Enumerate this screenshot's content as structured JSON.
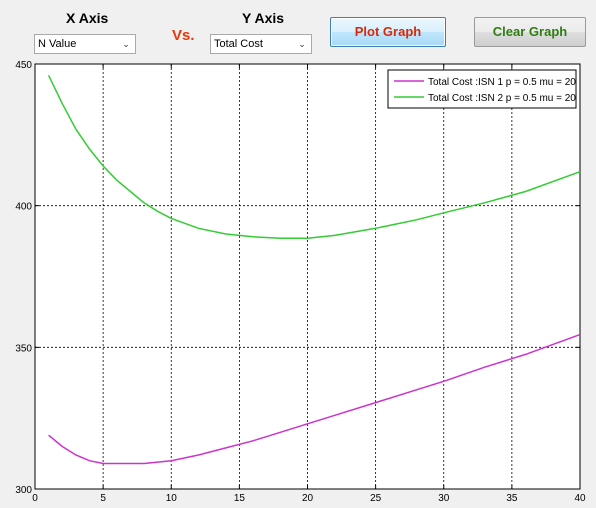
{
  "controls": {
    "x_axis_label": "X Axis",
    "y_axis_label": "Y Axis",
    "vs_label": "Vs.",
    "x_select_value": "N Value",
    "y_select_value": "Total Cost",
    "plot_button": "Plot Graph",
    "clear_button": "Clear Graph"
  },
  "chart_data": {
    "type": "line",
    "title": "",
    "xlabel": "",
    "ylabel": "",
    "xlim": [
      0,
      40
    ],
    "ylim": [
      300,
      450
    ],
    "xticks": [
      "0",
      "5",
      "10",
      "15",
      "20",
      "25",
      "30",
      "35",
      "40"
    ],
    "yticks": [
      "300",
      "350",
      "400",
      "450"
    ],
    "grid": true,
    "legend_position": "top-right",
    "series": [
      {
        "name": "Total Cost :ISN 1 p = 0.5 mu = 20",
        "color": "#cc33cc",
        "x": [
          1,
          2,
          3,
          4,
          5,
          6,
          7,
          8,
          9,
          10,
          12,
          14,
          16,
          18,
          20,
          22,
          25,
          28,
          30,
          33,
          36,
          40
        ],
        "y": [
          319,
          315,
          312,
          310,
          309,
          309,
          309,
          309,
          309.5,
          310,
          312,
          314.5,
          317,
          320,
          323,
          326,
          330.5,
          335,
          338,
          343,
          347.5,
          354.5
        ]
      },
      {
        "name": "Total Cost :ISN 2 p = 0.5 mu = 20",
        "color": "#33cc33",
        "x": [
          1,
          2,
          3,
          4,
          5,
          6,
          7,
          8,
          9,
          10,
          12,
          14,
          16,
          18,
          20,
          22,
          25,
          28,
          30,
          33,
          36,
          40
        ],
        "y": [
          446,
          436,
          427,
          420,
          414,
          409,
          405,
          401,
          398,
          395.5,
          392,
          390,
          389,
          388.5,
          388.5,
          389.5,
          392,
          395,
          397.5,
          401,
          405,
          412
        ]
      }
    ]
  }
}
